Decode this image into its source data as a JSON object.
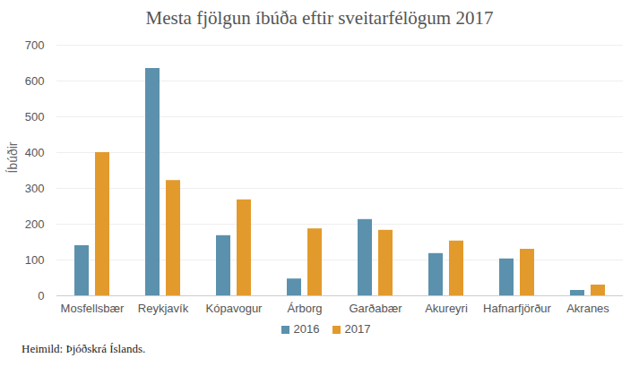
{
  "chart_data": {
    "type": "bar",
    "title": "Mesta fjölgun íbúða eftir sveitarfélögum 2017",
    "y_label": "Íbúðir",
    "caption": "Heimild: Þjóðskrá Íslands.",
    "categories": [
      "Mosfellsbær",
      "Reykjavík",
      "Kópavogur",
      "Árborg",
      "Garðabær",
      "Akureyri",
      "Hafnarfjörður",
      "Akranes"
    ],
    "series": [
      {
        "name": "2016",
        "color": "#5b91ad",
        "values": [
          140,
          635,
          168,
          47,
          213,
          118,
          103,
          15
        ]
      },
      {
        "name": "2017",
        "color": "#e39a2c",
        "values": [
          400,
          322,
          268,
          187,
          183,
          153,
          130,
          30
        ]
      }
    ],
    "ylim": [
      0,
      700
    ],
    "yticks": [
      0,
      100,
      200,
      300,
      400,
      500,
      600,
      700
    ],
    "grid": true,
    "legend": "bottom"
  }
}
